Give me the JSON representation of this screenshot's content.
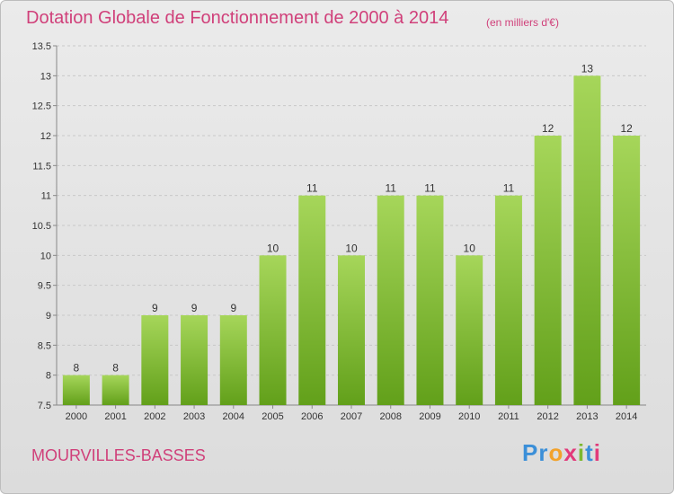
{
  "title": "Dotation Globale de Fonctionnement de 2000 à 2014",
  "subtitle": "(en milliers d'€)",
  "commune": "MOURVILLES-BASSES",
  "logo": {
    "letters": [
      "P",
      "r",
      "o",
      "x",
      "i",
      "t",
      "i"
    ],
    "colors": [
      "#3b8fd8",
      "#3b8fd8",
      "#f2a22b",
      "#e23a7a",
      "#7cb82f",
      "#3b8fd8",
      "#e23a7a"
    ]
  },
  "colors": {
    "bar_top": "#a6d65a",
    "bar_bottom": "#62a01a",
    "axis_text": "#333333",
    "grid": "#c8c8c8"
  },
  "chart_data": {
    "type": "bar",
    "title": "Dotation Globale de Fonctionnement de 2000 à 2014",
    "subtitle": "(en milliers d'€)",
    "categories": [
      "2000",
      "2001",
      "2002",
      "2003",
      "2004",
      "2005",
      "2006",
      "2007",
      "2008",
      "2009",
      "2010",
      "2011",
      "2012",
      "2013",
      "2014"
    ],
    "values": [
      8,
      8,
      9,
      9,
      9,
      10,
      11,
      10,
      11,
      11,
      10,
      11,
      12,
      13,
      12
    ],
    "data_labels": [
      "8",
      "8",
      "9",
      "9",
      "9",
      "10",
      "11",
      "10",
      "11",
      "11",
      "10",
      "11",
      "12",
      "13",
      "12"
    ],
    "ylim": [
      7.5,
      13.5
    ],
    "yticks": [
      7.5,
      8,
      8.5,
      9,
      9.5,
      10,
      10.5,
      11,
      11.5,
      12,
      12.5,
      13,
      13.5
    ],
    "ytick_labels": [
      "7.5",
      "8",
      "8.5",
      "9",
      "9.5",
      "10",
      "10.5",
      "11",
      "11.5",
      "12",
      "12.5",
      "13",
      "13.5"
    ],
    "grid": true,
    "legend": "none"
  }
}
